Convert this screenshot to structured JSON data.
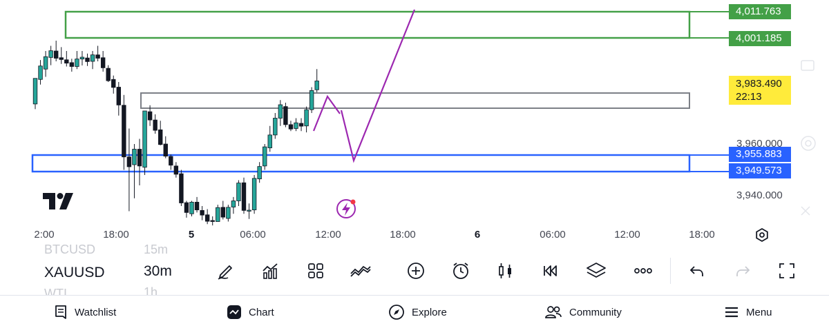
{
  "chart": {
    "symbol": "XAUUSD",
    "interval": "30m",
    "zones": {
      "supply_upper": "4,011.763",
      "supply_lower": "4,001.185",
      "demand_upper": "3,955.883",
      "demand_lower": "3,949.573"
    },
    "current_price": "3,983.490",
    "countdown": "22:13",
    "price_axis": [
      "3,960.000",
      "3,940.000"
    ],
    "time_axis": [
      "2:00",
      "18:00",
      "5",
      "06:00",
      "12:00",
      "18:00",
      "6",
      "06:00",
      "12:00",
      "18:00"
    ],
    "colors": {
      "up_candle": "#26a69a",
      "down_candle": "#131722",
      "supply_zone": "#43a047",
      "demand_zone": "#2962ff",
      "range_box": "#7c7f86",
      "projection": "#9c27b0",
      "current_price_label": "#ffeb3b"
    }
  },
  "symbols": {
    "prev": "BTCUSD",
    "prev_interval": "15m",
    "current": "XAUUSD",
    "current_interval": "30m",
    "next": "WTI",
    "next_interval": "1h"
  },
  "toolbar": {
    "icons": [
      "pencil-icon",
      "indicators-icon",
      "layouts-icon",
      "chart-style-icon",
      "add-icon",
      "alert-icon",
      "candles-icon",
      "replay-icon",
      "layers-icon",
      "more-icon",
      "undo-icon",
      "redo-icon",
      "fullscreen-icon"
    ]
  },
  "nav": {
    "watchlist": "Watchlist",
    "chart": "Chart",
    "explore": "Explore",
    "community": "Community",
    "menu": "Menu"
  }
}
